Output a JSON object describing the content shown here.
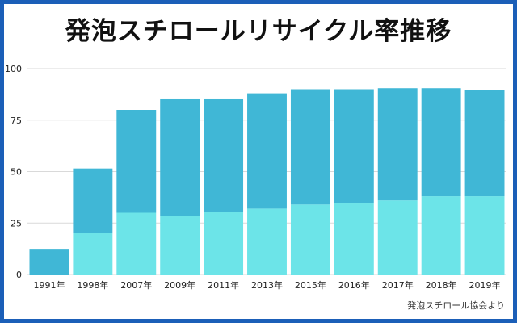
{
  "title": "発泡スチロールリサイクル率推移",
  "source": "発泡スチロール協会より",
  "colors": {
    "frame": "#1b5fb8",
    "bar_upper": "#40b7d6",
    "bar_lower": "#6ce4e8",
    "grid": "#d9d9d9"
  },
  "chart_data": {
    "type": "bar",
    "stacked": true,
    "categories": [
      "1991年",
      "1998年",
      "2007年",
      "2009年",
      "2011年",
      "2013年",
      "2015年",
      "2016年",
      "2017年",
      "2018年",
      "2019年"
    ],
    "series": [
      {
        "values": [
          0,
          20,
          30,
          28.5,
          30.5,
          32,
          34,
          34.5,
          36,
          38,
          38
        ]
      },
      {
        "values": [
          12.5,
          31.5,
          50,
          57,
          55,
          56,
          56,
          55.5,
          54.5,
          52.5,
          51.5
        ]
      }
    ],
    "totals": [
      12.5,
      51.5,
      80,
      85.5,
      85.5,
      88,
      90,
      90,
      90.5,
      90.5,
      89.5
    ],
    "yticks": [
      0,
      25,
      50,
      75,
      100
    ],
    "ylim": [
      0,
      100
    ],
    "grid": true,
    "legend": "none"
  }
}
